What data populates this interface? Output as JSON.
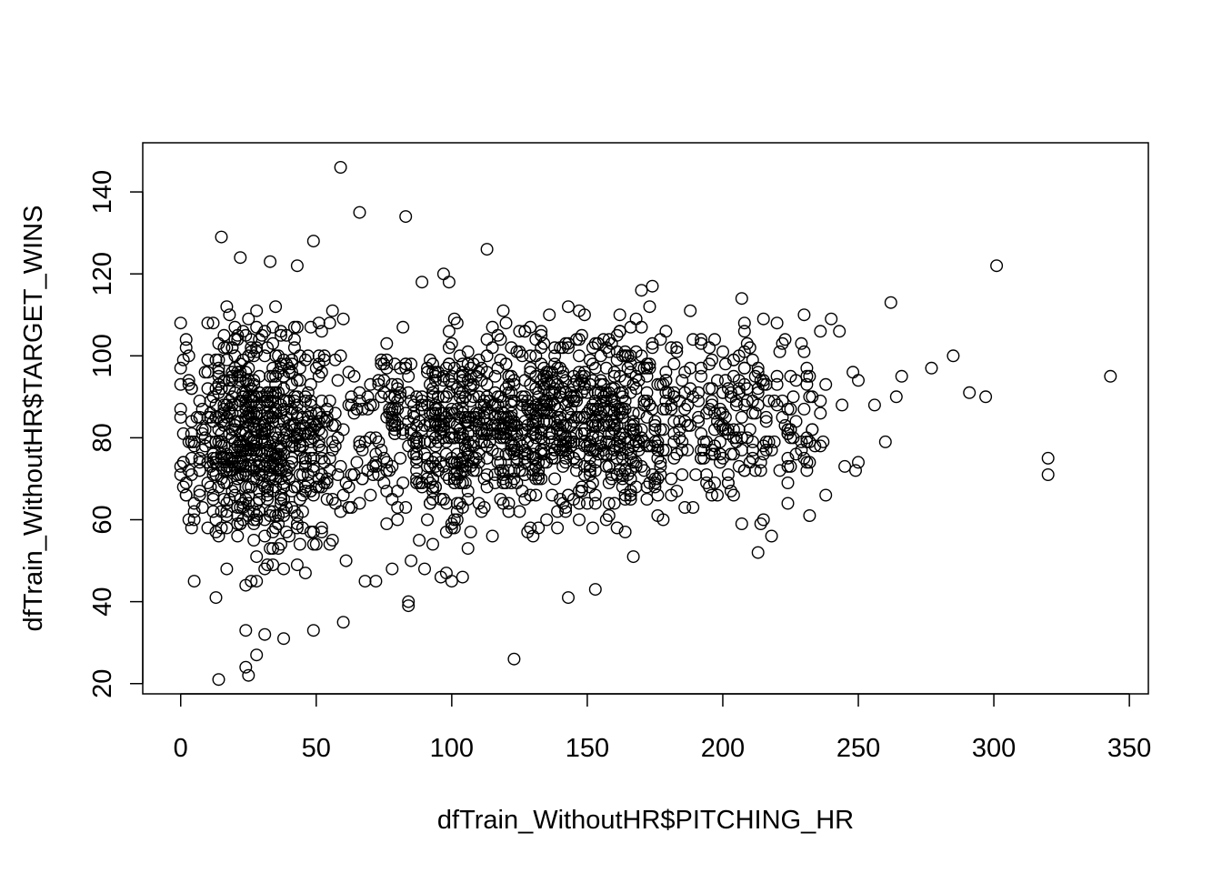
{
  "chart_data": {
    "type": "scatter",
    "title": "",
    "xlabel": "dfTrain_WithoutHR$PITCHING_HR",
    "ylabel": "dfTrain_WithoutHR$TARGET_WINS",
    "xlim": [
      -14,
      357
    ],
    "ylim": [
      17.5,
      152
    ],
    "x_ticks": [
      0,
      50,
      100,
      150,
      200,
      250,
      300,
      350
    ],
    "y_ticks": [
      20,
      40,
      60,
      80,
      100,
      120,
      140
    ],
    "x_tick_labels": [
      "0",
      "50",
      "100",
      "150",
      "200",
      "250",
      "300",
      "350"
    ],
    "y_tick_labels": [
      "20",
      "40",
      "60",
      "80",
      "100",
      "120",
      "140"
    ],
    "marker": "open-circle",
    "grid": false,
    "legend": "none",
    "point_count_estimate": 2100,
    "notable_points": [
      {
        "x": 59,
        "y": 146
      },
      {
        "x": 66,
        "y": 135
      },
      {
        "x": 83,
        "y": 134
      },
      {
        "x": 113,
        "y": 126
      },
      {
        "x": 301,
        "y": 122
      },
      {
        "x": 15,
        "y": 129
      },
      {
        "x": 49,
        "y": 128
      },
      {
        "x": 22,
        "y": 124
      },
      {
        "x": 33,
        "y": 123
      },
      {
        "x": 43,
        "y": 122
      },
      {
        "x": 97,
        "y": 120
      },
      {
        "x": 99,
        "y": 118
      },
      {
        "x": 89,
        "y": 118
      },
      {
        "x": 170,
        "y": 116
      },
      {
        "x": 174,
        "y": 117
      },
      {
        "x": 262,
        "y": 113
      },
      {
        "x": 207,
        "y": 114
      },
      {
        "x": 285,
        "y": 100
      },
      {
        "x": 277,
        "y": 97
      },
      {
        "x": 291,
        "y": 91
      },
      {
        "x": 297,
        "y": 90
      },
      {
        "x": 343,
        "y": 95
      },
      {
        "x": 320,
        "y": 75
      },
      {
        "x": 320,
        "y": 71
      },
      {
        "x": 266,
        "y": 95
      },
      {
        "x": 264,
        "y": 90
      },
      {
        "x": 260,
        "y": 79
      },
      {
        "x": 256,
        "y": 88
      },
      {
        "x": 240,
        "y": 109
      },
      {
        "x": 238,
        "y": 66
      },
      {
        "x": 218,
        "y": 56
      },
      {
        "x": 153,
        "y": 43
      },
      {
        "x": 143,
        "y": 41
      },
      {
        "x": 123,
        "y": 26
      },
      {
        "x": 84,
        "y": 40
      },
      {
        "x": 84,
        "y": 39
      },
      {
        "x": 60,
        "y": 35
      },
      {
        "x": 49,
        "y": 33
      },
      {
        "x": 38,
        "y": 31
      },
      {
        "x": 31,
        "y": 32
      },
      {
        "x": 28,
        "y": 27
      },
      {
        "x": 24,
        "y": 24
      },
      {
        "x": 25,
        "y": 22
      },
      {
        "x": 14,
        "y": 21
      },
      {
        "x": 24,
        "y": 33
      },
      {
        "x": 0,
        "y": 108
      },
      {
        "x": 0,
        "y": 93
      },
      {
        "x": 0,
        "y": 73
      },
      {
        "x": 0,
        "y": 71
      },
      {
        "x": 5,
        "y": 45
      },
      {
        "x": 13,
        "y": 41
      },
      {
        "x": 68,
        "y": 45
      },
      {
        "x": 72,
        "y": 45
      },
      {
        "x": 78,
        "y": 48
      },
      {
        "x": 100,
        "y": 45
      },
      {
        "x": 104,
        "y": 46
      },
      {
        "x": 96,
        "y": 46
      },
      {
        "x": 230,
        "y": 110
      },
      {
        "x": 223,
        "y": 104
      },
      {
        "x": 250,
        "y": 94
      },
      {
        "x": 248,
        "y": 96
      },
      {
        "x": 245,
        "y": 73
      },
      {
        "x": 249,
        "y": 72
      },
      {
        "x": 250,
        "y": 74
      },
      {
        "x": 231,
        "y": 72
      },
      {
        "x": 229,
        "y": 77
      }
    ],
    "clusters": [
      {
        "cx": 30,
        "cy": 80,
        "sx": 15,
        "sy": 14,
        "n": 720
      },
      {
        "cx": 105,
        "cy": 82,
        "sx": 20,
        "sy": 12,
        "n": 520
      },
      {
        "cx": 150,
        "cy": 84,
        "sx": 22,
        "sy": 11,
        "n": 560
      },
      {
        "cx": 205,
        "cy": 85,
        "sx": 22,
        "sy": 11,
        "n": 230
      }
    ]
  }
}
